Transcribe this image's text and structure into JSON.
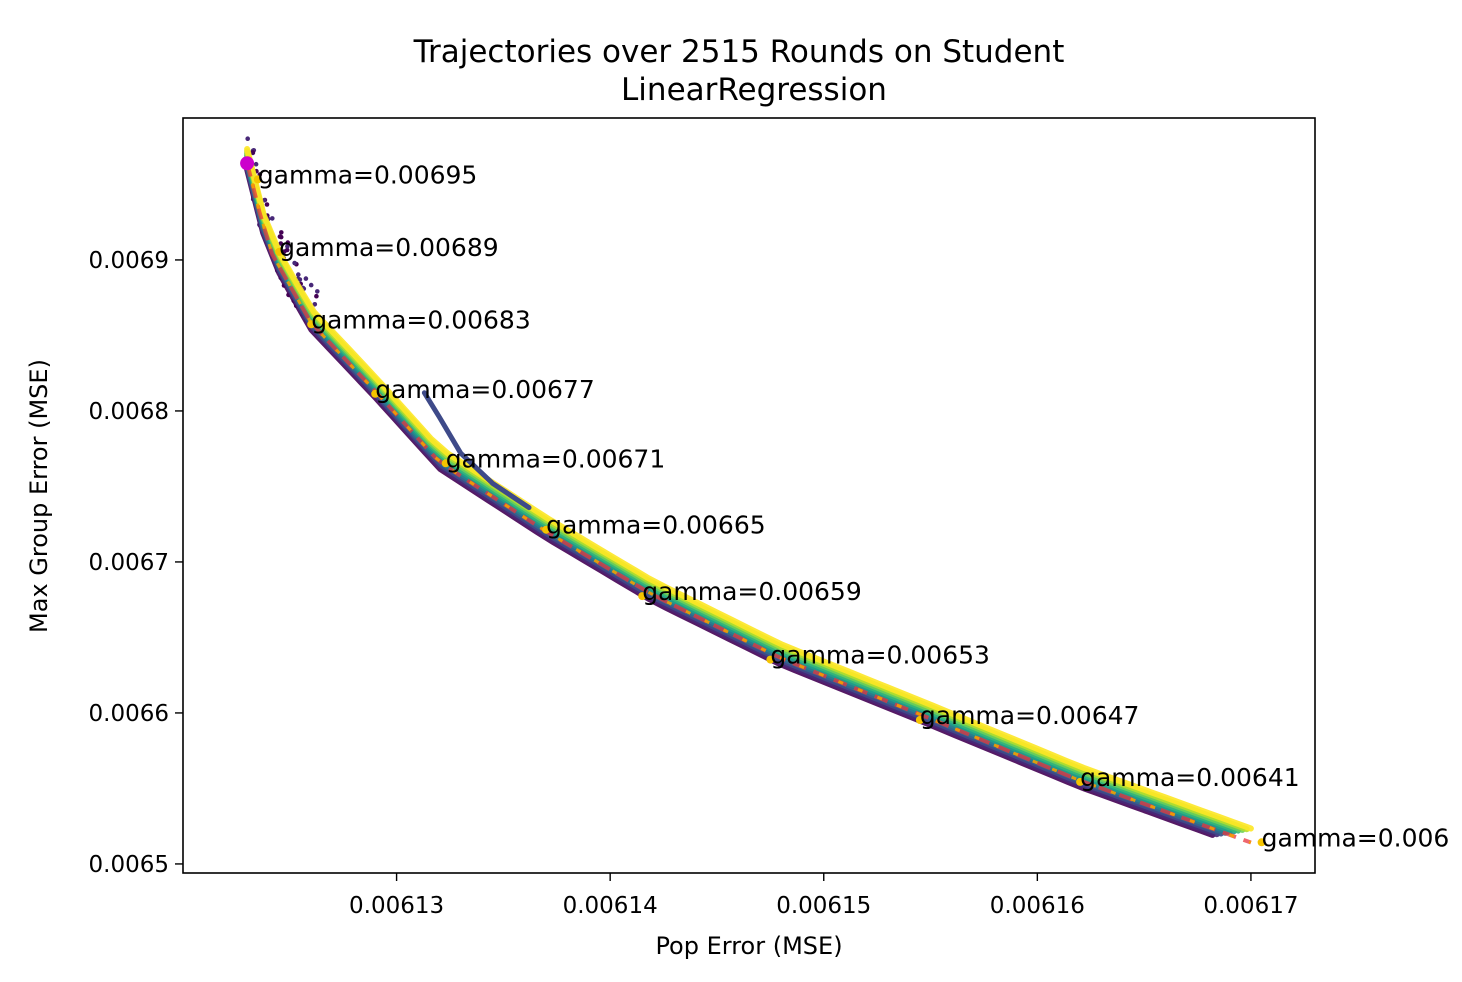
{
  "chart_data": {
    "type": "line",
    "title": "Trajectories over 2515 Rounds on Student",
    "subtitle": "LinearRegression",
    "xlabel": "Pop Error (MSE)",
    "ylabel": "Max Group Error (MSE)",
    "xlim": [
      0.00612,
      0.006173
    ],
    "ylim": [
      0.006494,
      0.006994
    ],
    "xticks": [
      0.00613,
      0.00614,
      0.00615,
      0.00616,
      0.00617
    ],
    "xtick_labels": [
      "0.00613",
      "0.00614",
      "0.00615",
      "0.00616",
      "0.00617"
    ],
    "yticks": [
      0.0065,
      0.0066,
      0.0067,
      0.0068,
      0.0069
    ],
    "ytick_labels": [
      "0.0065",
      "0.0066",
      "0.0067",
      "0.0068",
      "0.0069"
    ],
    "grid": false,
    "legend": "none",
    "frontier": {
      "x": [
        0.006123,
        0.006124,
        0.006126,
        0.006129,
        0.006132,
        0.006137,
        0.006142,
        0.006148,
        0.006155,
        0.006162,
        0.00617
      ],
      "y": [
        0.006966,
        0.00691,
        0.00686,
        0.006815,
        0.006768,
        0.006722,
        0.00668,
        0.006638,
        0.006598,
        0.006557,
        0.006516
      ]
    },
    "trajectory_colors": [
      "#440154",
      "#482878",
      "#3e4a89",
      "#31688e",
      "#26828e",
      "#1f9e89",
      "#35b779",
      "#6ece58",
      "#b5de2b",
      "#fde725"
    ],
    "marker_color": "#cc00cc",
    "annotations": [
      {
        "text": "gamma=0.00695",
        "x": 0.0061235,
        "y": 0.006956
      },
      {
        "text": "gamma=0.00689",
        "x": 0.0061245,
        "y": 0.006908
      },
      {
        "text": "gamma=0.00683",
        "x": 0.006126,
        "y": 0.00686
      },
      {
        "text": "gamma=0.00677",
        "x": 0.006129,
        "y": 0.006814
      },
      {
        "text": "gamma=0.00671",
        "x": 0.0061323,
        "y": 0.006768
      },
      {
        "text": "gamma=0.00665",
        "x": 0.006137,
        "y": 0.006724
      },
      {
        "text": "gamma=0.00659",
        "x": 0.0061415,
        "y": 0.00668
      },
      {
        "text": "gamma=0.00653",
        "x": 0.0061475,
        "y": 0.006638
      },
      {
        "text": "gamma=0.00647",
        "x": 0.0061545,
        "y": 0.006598
      },
      {
        "text": "gamma=0.00641",
        "x": 0.006162,
        "y": 0.006557
      },
      {
        "text": "gamma=0.006",
        "x": 0.0061705,
        "y": 0.006517
      }
    ]
  }
}
